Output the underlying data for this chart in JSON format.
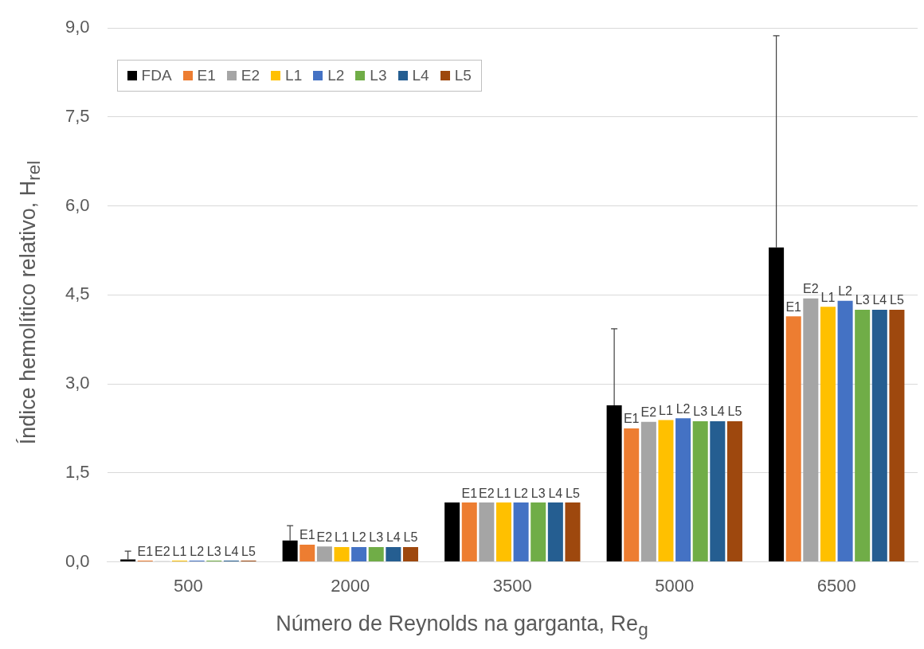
{
  "chart_data": {
    "type": "bar",
    "xlabel": "Número de Reynolds na garganta, Re$_{g}$",
    "ylabel": "Índice hemolítico relativo, H$_{rel}$",
    "categories": [
      "500",
      "2000",
      "3500",
      "5000",
      "6500"
    ],
    "ylim": [
      0,
      9
    ],
    "yticks": [
      {
        "value": 0,
        "label": "0,0"
      },
      {
        "value": 1.5,
        "label": "1,5"
      },
      {
        "value": 3,
        "label": "3,0"
      },
      {
        "value": 4.5,
        "label": "4,5"
      },
      {
        "value": 6,
        "label": "6,0"
      },
      {
        "value": 7.5,
        "label": "7,5"
      },
      {
        "value": 9,
        "label": "9,0"
      }
    ],
    "grid": "y",
    "legend": "top left",
    "series": [
      {
        "name": "FDA",
        "color": "#000000",
        "values": [
          0.04,
          0.36,
          1.0,
          2.64,
          5.3
        ],
        "errors": [
          [
            0.04,
            0.18
          ],
          [
            0.36,
            0.61
          ],
          null,
          [
            2.64,
            3.93
          ],
          [
            5.3,
            8.87
          ]
        ]
      },
      {
        "name": "E1",
        "color": "#ed7d31",
        "values": [
          0.02,
          0.29,
          1.0,
          2.25,
          4.14
        ],
        "value_labels": [
          "E1",
          "E1",
          "E1",
          "E1",
          "E1"
        ]
      },
      {
        "name": "E2",
        "color": "#a5a5a5",
        "values": [
          0.01,
          0.26,
          1.0,
          2.36,
          4.44
        ],
        "value_labels": [
          "E2",
          "E2",
          "E2",
          "E2",
          "E2"
        ]
      },
      {
        "name": "L1",
        "color": "#ffc000",
        "values": [
          0.02,
          0.25,
          1.0,
          2.39,
          4.3
        ],
        "value_labels": [
          "L1",
          "L1",
          "L1",
          "L1",
          "L1"
        ]
      },
      {
        "name": "L2",
        "color": "#4472c4",
        "values": [
          0.02,
          0.25,
          1.0,
          2.42,
          4.4
        ],
        "value_labels": [
          "L2",
          "L2",
          "L2",
          "L2",
          "L2"
        ]
      },
      {
        "name": "L3",
        "color": "#70ad47",
        "values": [
          0.02,
          0.25,
          1.0,
          2.37,
          4.25
        ],
        "value_labels": [
          "L3",
          "L3",
          "L3",
          "L3",
          "L3"
        ]
      },
      {
        "name": "L4",
        "color": "#255e91",
        "values": [
          0.02,
          0.25,
          1.0,
          2.37,
          4.25
        ],
        "value_labels": [
          "L4",
          "L4",
          "L4",
          "L4",
          "L4"
        ]
      },
      {
        "name": "L5",
        "color": "#9e480e",
        "values": [
          0.02,
          0.25,
          1.0,
          2.37,
          4.25
        ],
        "value_labels": [
          "L5",
          "L5",
          "L5",
          "L5",
          "L5"
        ]
      }
    ]
  }
}
